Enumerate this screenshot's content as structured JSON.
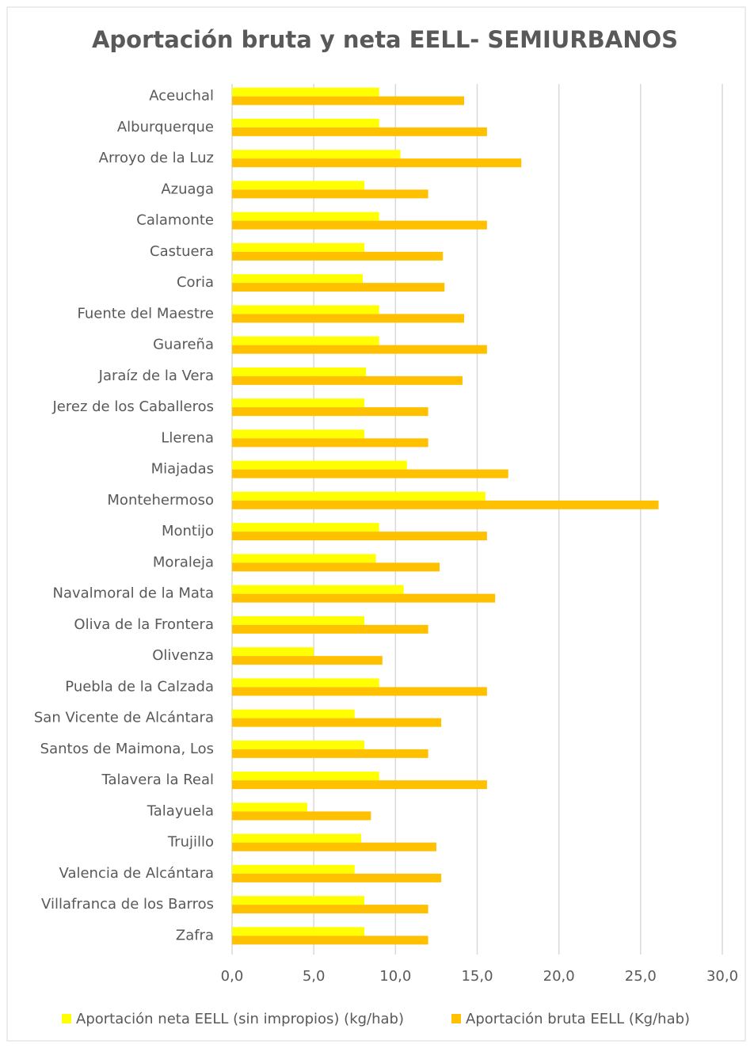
{
  "chart_data": {
    "type": "bar",
    "orientation": "horizontal",
    "title": "Aportación bruta y neta EELL- SEMIURBANOS",
    "categories": [
      "Aceuchal",
      "Alburquerque",
      "Arroyo de la Luz",
      "Azuaga",
      "Calamonte",
      "Castuera",
      "Coria",
      "Fuente del Maestre",
      "Guareña",
      "Jaraíz de la Vera",
      "Jerez de los Caballeros",
      "Llerena",
      "Miajadas",
      "Montehermoso",
      "Montijo",
      "Moraleja",
      "Navalmoral de la Mata",
      "Oliva de la Frontera",
      "Olivenza",
      "Puebla de la Calzada",
      "San Vicente de Alcántara",
      "Santos de Maimona, Los",
      "Talavera la Real",
      "Talayuela",
      "Trujillo",
      "Valencia de Alcántara",
      "Villafranca de los Barros",
      "Zafra"
    ],
    "series": [
      {
        "name": "Aportación neta EELL (sin impropios) (kg/hab)",
        "color": "#ffff00",
        "values": [
          9.0,
          9.0,
          10.3,
          8.1,
          9.0,
          8.1,
          8.0,
          9.0,
          9.0,
          8.2,
          8.1,
          8.1,
          10.7,
          15.5,
          9.0,
          8.8,
          10.5,
          8.1,
          5.0,
          9.0,
          7.5,
          8.1,
          9.0,
          4.6,
          7.9,
          7.5,
          8.1,
          8.1
        ]
      },
      {
        "name": "Aportación bruta EELL (Kg/hab)",
        "color": "#ffc000",
        "values": [
          14.2,
          15.6,
          17.7,
          12.0,
          15.6,
          12.9,
          13.0,
          14.2,
          15.6,
          14.1,
          12.0,
          12.0,
          16.9,
          26.1,
          15.6,
          12.7,
          16.1,
          12.0,
          9.2,
          15.6,
          12.8,
          12.0,
          15.6,
          8.5,
          12.5,
          12.8,
          12.0,
          12.0
        ]
      }
    ],
    "xlim": [
      0,
      30
    ],
    "xticks": [
      {
        "value": 0,
        "label": "0,0"
      },
      {
        "value": 5,
        "label": "5,0"
      },
      {
        "value": 10,
        "label": "10,0"
      },
      {
        "value": 15,
        "label": "15,0"
      },
      {
        "value": 20,
        "label": "20,0"
      },
      {
        "value": 25,
        "label": "25,0"
      },
      {
        "value": 30,
        "label": "30,0"
      }
    ],
    "grid": true,
    "legend": "bottom"
  }
}
